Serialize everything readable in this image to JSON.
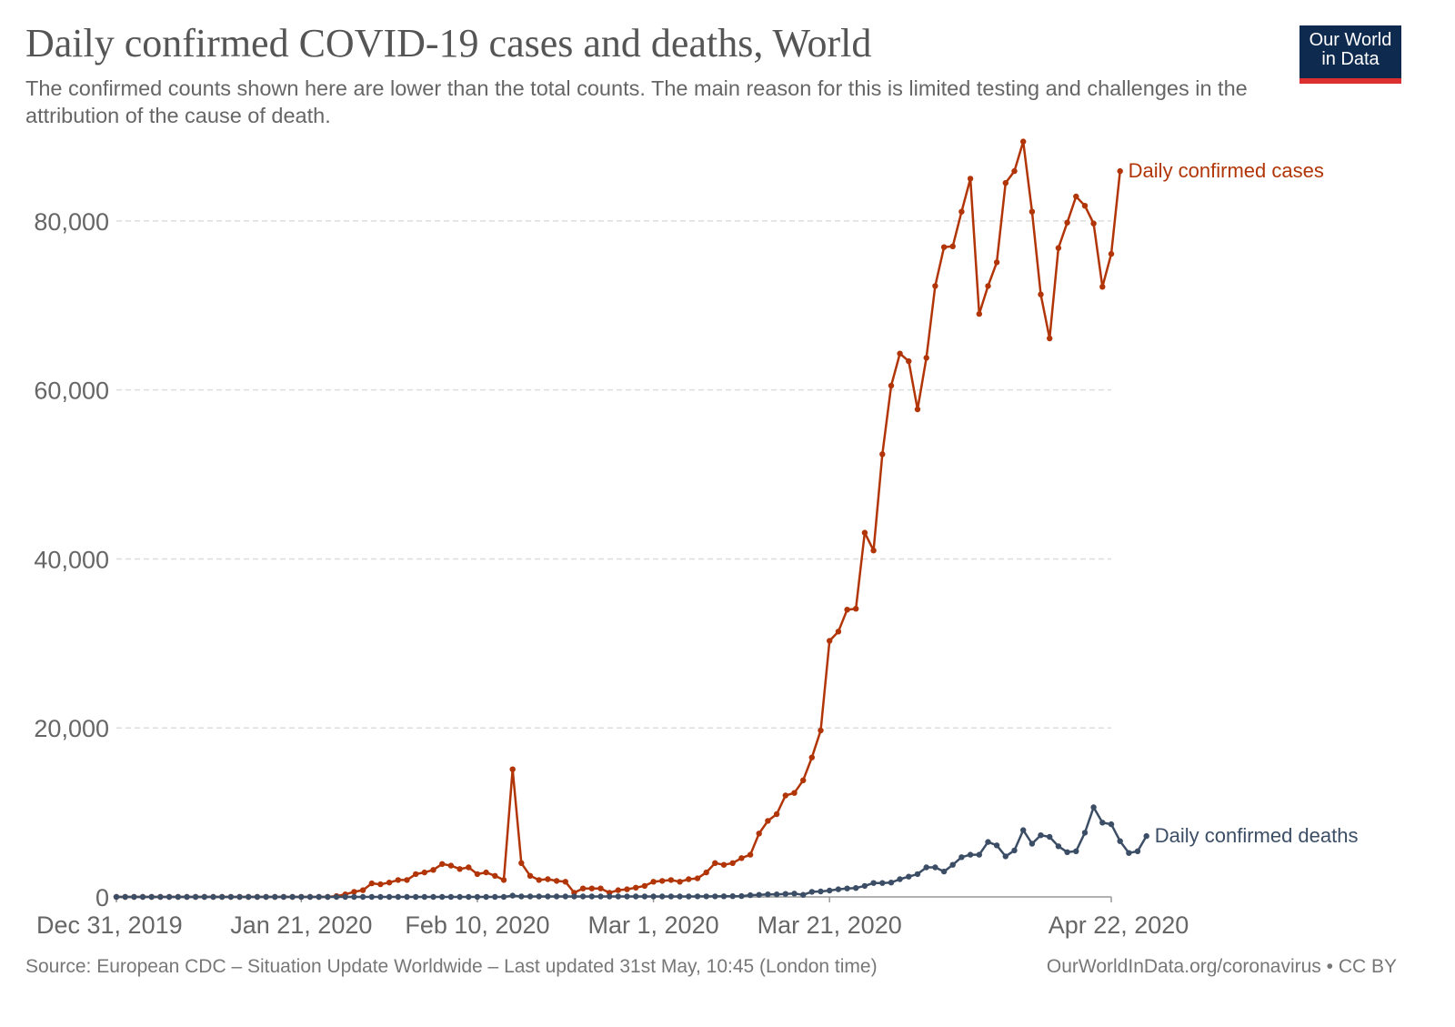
{
  "header": {
    "title": "Daily confirmed COVID-19 cases and deaths, World",
    "subtitle": "The confirmed counts shown here are lower than the total counts. The main reason for this is limited testing and challenges in the attribution of the cause of death."
  },
  "logo": {
    "line1": "Our World",
    "line2": "in Data",
    "bg_color": "#0f2a4f",
    "accent_color": "#dc2f2f"
  },
  "footer": {
    "source": "Source: European CDC – Situation Update Worldwide – Last updated 31st May, 10:45 (London time)",
    "credit": "OurWorldInData.org/coronavirus • CC BY"
  },
  "chart_data": {
    "type": "line",
    "x_start": "2019-12-31",
    "x_end": "2020-04-22",
    "x_ticks": [
      {
        "label": "Dec 31, 2019",
        "date": "2019-12-31"
      },
      {
        "label": "Jan 21, 2020",
        "date": "2020-01-21"
      },
      {
        "label": "Feb 10, 2020",
        "date": "2020-02-10"
      },
      {
        "label": "Mar 1, 2020",
        "date": "2020-03-01"
      },
      {
        "label": "Mar 21, 2020",
        "date": "2020-03-21"
      },
      {
        "label": "Apr 22, 2020",
        "date": "2020-04-22"
      }
    ],
    "y_ticks": [
      {
        "value": 0,
        "label": "0"
      },
      {
        "value": 20000,
        "label": "20,000"
      },
      {
        "value": 40000,
        "label": "40,000"
      },
      {
        "value": 60000,
        "label": "60,000"
      },
      {
        "value": 80000,
        "label": "80,000"
      }
    ],
    "ylim": [
      0,
      90000
    ],
    "grid": "horizontal dashed",
    "series": [
      {
        "name": "Daily confirmed cases",
        "color": "#b13507",
        "values": [
          0,
          0,
          0,
          0,
          0,
          0,
          0,
          0,
          0,
          0,
          0,
          0,
          0,
          0,
          0,
          0,
          0,
          0,
          0,
          0,
          0,
          0,
          0,
          0,
          0,
          100,
          300,
          600,
          800,
          1600,
          1500,
          1700,
          2000,
          2000,
          2700,
          2900,
          3200,
          3900,
          3700,
          3300,
          3500,
          2700,
          2900,
          2500,
          2000,
          15100,
          4000,
          2500,
          2000,
          2100,
          1900,
          1800,
          500,
          1000,
          1000,
          1000,
          500,
          800,
          900,
          1100,
          1300,
          1800,
          1900,
          2000,
          1800,
          2100,
          2200,
          2900,
          4000,
          3800,
          4000,
          4600,
          5000,
          7500,
          9000,
          9800,
          12000,
          12300,
          13800,
          16500,
          19700,
          30300,
          31400,
          34000,
          34100,
          43100,
          41000,
          52400,
          60500,
          64300,
          63400,
          57700,
          63800,
          72300,
          76900,
          77000,
          81100,
          85000,
          69000,
          72300,
          75100,
          84500,
          85900,
          89400,
          81100,
          71300,
          66100,
          76800,
          79800,
          82900,
          81800,
          79700,
          72200,
          76100,
          85900
        ]
      },
      {
        "name": "Daily confirmed deaths",
        "color": "#3c4e66",
        "values": [
          0,
          0,
          0,
          0,
          0,
          0,
          0,
          0,
          0,
          0,
          0,
          0,
          0,
          0,
          0,
          0,
          0,
          0,
          0,
          0,
          0,
          0,
          0,
          0,
          0,
          0,
          0,
          0,
          0,
          0,
          0,
          0,
          0,
          0,
          0,
          0,
          0,
          0,
          0,
          0,
          0,
          0,
          0,
          0,
          0,
          150,
          50,
          50,
          50,
          50,
          50,
          50,
          50,
          50,
          50,
          50,
          50,
          50,
          50,
          50,
          50,
          50,
          50,
          50,
          50,
          50,
          60,
          60,
          60,
          70,
          90,
          100,
          200,
          250,
          300,
          300,
          350,
          400,
          250,
          600,
          650,
          750,
          900,
          1000,
          1050,
          1300,
          1650,
          1650,
          1700,
          2100,
          2400,
          2700,
          3500,
          3500,
          3000,
          3800,
          4700,
          5000,
          5000,
          6500,
          6100,
          4800,
          5500,
          7900,
          6300,
          7300,
          7100,
          6000,
          5300,
          5400,
          7600,
          10600,
          8800,
          8600,
          6600,
          5200,
          5400,
          7200
        ]
      }
    ]
  }
}
